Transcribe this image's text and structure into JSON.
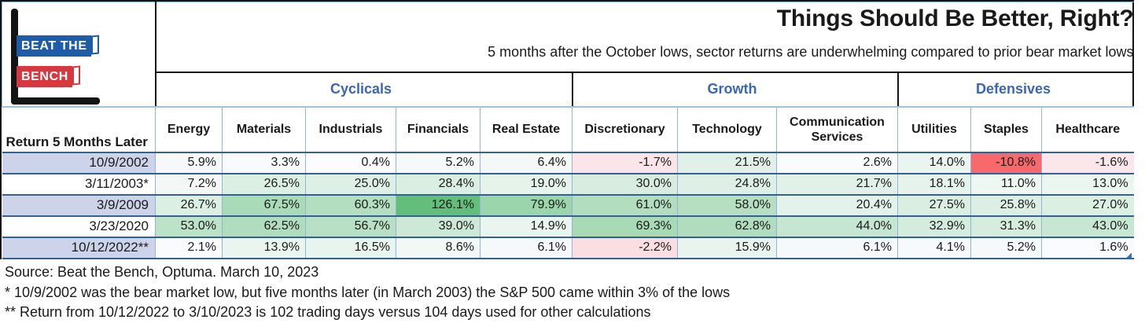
{
  "logo": {
    "line1": "BEAT THE",
    "line2": "BENCH"
  },
  "header": {
    "title": "Things Should Be Better, Right?",
    "subtitle": "5 months after the October lows, sector returns are underwhelming compared to prior bear market lows"
  },
  "chart_data": {
    "type": "table",
    "title": "Things Should Be Better, Right?",
    "row_header_label": "Return 5 Months Later",
    "groups": [
      {
        "label": "Cyclicals",
        "columns": [
          "Energy",
          "Materials",
          "Industrials",
          "Financials",
          "Real Estate"
        ]
      },
      {
        "label": "Growth",
        "columns": [
          "Discretionary",
          "Technology",
          "Communication Services"
        ]
      },
      {
        "label": "Defensives",
        "columns": [
          "Utilities",
          "Staples",
          "Healthcare"
        ]
      }
    ],
    "rows": [
      {
        "date": "10/9/2002",
        "values": [
          5.9,
          3.3,
          0.4,
          5.2,
          6.4,
          -1.7,
          21.5,
          2.6,
          14.0,
          -10.8,
          -1.6
        ]
      },
      {
        "date": "3/11/2003*",
        "values": [
          7.2,
          26.5,
          25.0,
          28.4,
          19.0,
          30.0,
          24.8,
          21.7,
          18.1,
          11.0,
          13.0
        ]
      },
      {
        "date": "3/9/2009",
        "values": [
          26.7,
          67.5,
          60.3,
          126.1,
          79.9,
          61.0,
          58.0,
          20.4,
          27.5,
          25.8,
          27.0
        ]
      },
      {
        "date": "3/23/2020",
        "values": [
          53.0,
          62.5,
          56.7,
          39.0,
          14.9,
          69.3,
          62.8,
          44.0,
          32.9,
          31.3,
          43.0
        ]
      },
      {
        "date": "10/12/2022**",
        "values": [
          2.1,
          13.9,
          16.5,
          8.6,
          6.1,
          -2.2,
          15.9,
          6.1,
          4.1,
          5.2,
          1.6
        ]
      }
    ],
    "value_format": "percent_1dp",
    "color_scale": {
      "min_color": "#F8696B",
      "mid_color": "#FCFCFF",
      "max_color": "#63BE7B",
      "midpoint": 0
    }
  },
  "footnotes": [
    "Source: Beat the Bench, Optuma. March 10, 2023",
    "* 10/9/2002 was the bear market low, but five months later (in March 2003) the S&P 500 came within 3% of the lows",
    "** Return from 10/12/2022 to 3/10/2023 is 102 trading days versus 104 days used for other calculations"
  ],
  "colors": {
    "frame_black": "#141414",
    "accent_blue": "#3A67B3",
    "band_lavender": "#CDD4EA",
    "grid_dark_blue": "#376092",
    "grid_light_blue": "#95B3D7",
    "logo_blue": "#1E5BA9",
    "logo_red": "#D5393E"
  }
}
